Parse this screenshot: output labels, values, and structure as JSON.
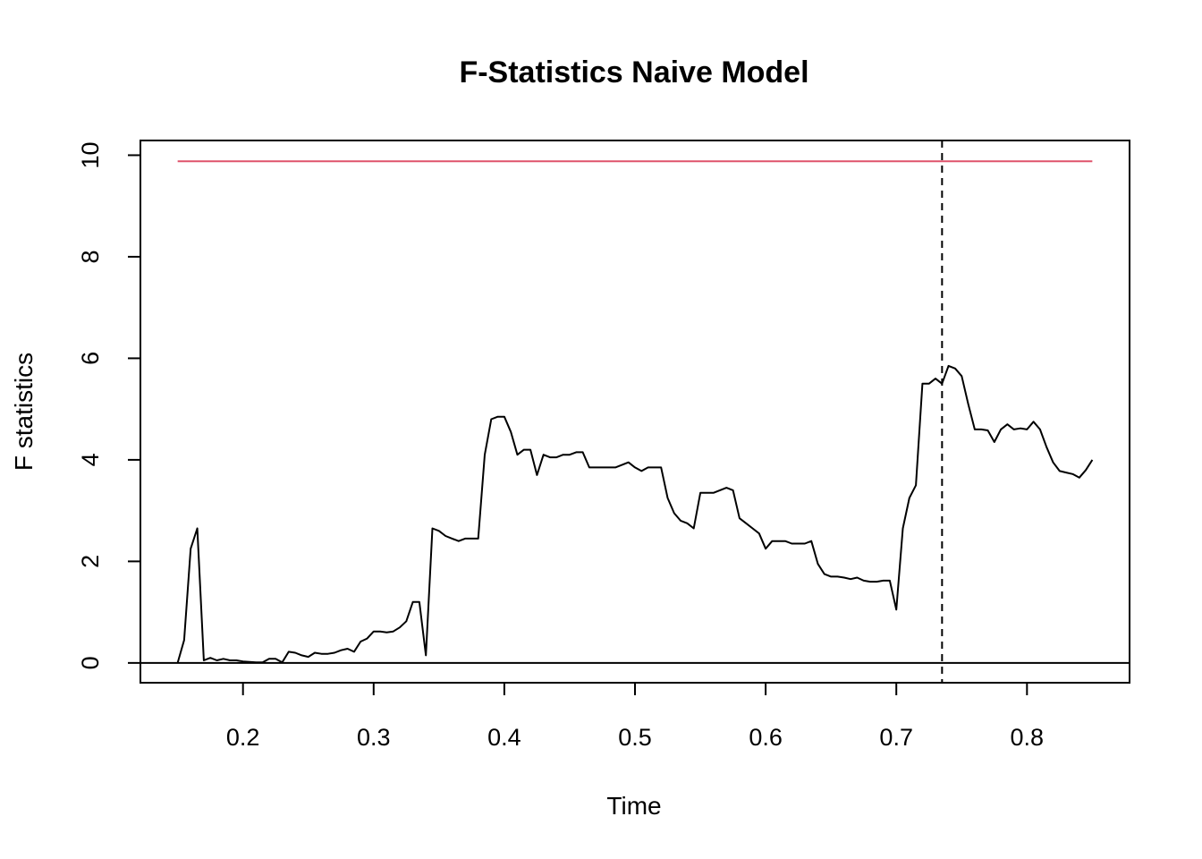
{
  "chart_data": {
    "type": "line",
    "title": "F-Statistics Naive Model",
    "xlabel": "Time",
    "ylabel": "F statistics",
    "xlim": [
      0.1215,
      0.8785
    ],
    "ylim": [
      -0.39,
      10.29
    ],
    "x_ticks": [
      0.2,
      0.3,
      0.4,
      0.5,
      0.6,
      0.7,
      0.8
    ],
    "y_ticks": [
      0,
      2,
      4,
      6,
      8,
      10
    ],
    "x_tick_labels": [
      "0.2",
      "0.3",
      "0.4",
      "0.5",
      "0.6",
      "0.7",
      "0.8"
    ],
    "y_tick_labels": [
      "0",
      "2",
      "4",
      "6",
      "8",
      "10"
    ],
    "grid": false,
    "series": [
      {
        "color": "#000000",
        "x": [
          0.15,
          0.155,
          0.16,
          0.165,
          0.17,
          0.175,
          0.18,
          0.185,
          0.19,
          0.195,
          0.2,
          0.205,
          0.21,
          0.215,
          0.22,
          0.225,
          0.23,
          0.235,
          0.24,
          0.245,
          0.25,
          0.255,
          0.26,
          0.265,
          0.27,
          0.275,
          0.28,
          0.285,
          0.29,
          0.295,
          0.3,
          0.305,
          0.31,
          0.315,
          0.32,
          0.325,
          0.33,
          0.335,
          0.34,
          0.345,
          0.35,
          0.355,
          0.36,
          0.365,
          0.37,
          0.375,
          0.38,
          0.385,
          0.39,
          0.395,
          0.4,
          0.405,
          0.41,
          0.415,
          0.42,
          0.425,
          0.43,
          0.435,
          0.44,
          0.445,
          0.45,
          0.455,
          0.46,
          0.465,
          0.47,
          0.475,
          0.48,
          0.485,
          0.49,
          0.495,
          0.5,
          0.505,
          0.51,
          0.515,
          0.52,
          0.525,
          0.53,
          0.535,
          0.54,
          0.545,
          0.55,
          0.555,
          0.56,
          0.565,
          0.57,
          0.575,
          0.58,
          0.585,
          0.59,
          0.595,
          0.6,
          0.605,
          0.61,
          0.615,
          0.62,
          0.625,
          0.63,
          0.635,
          0.64,
          0.645,
          0.65,
          0.655,
          0.66,
          0.665,
          0.67,
          0.675,
          0.68,
          0.685,
          0.69,
          0.695,
          0.7,
          0.705,
          0.71,
          0.715,
          0.72,
          0.725,
          0.73,
          0.735,
          0.74,
          0.745,
          0.75,
          0.755,
          0.76,
          0.765,
          0.77,
          0.775,
          0.78,
          0.785,
          0.79,
          0.795,
          0.8,
          0.805,
          0.81,
          0.815,
          0.82,
          0.825,
          0.83,
          0.835,
          0.84,
          0.845,
          0.85
        ],
        "y": [
          0,
          0.45,
          2.25,
          2.65,
          0.05,
          0.1,
          0.05,
          0.08,
          0.05,
          0.05,
          0.03,
          0.02,
          0.01,
          0.01,
          0.08,
          0.08,
          0.01,
          0.22,
          0.2,
          0.15,
          0.12,
          0.2,
          0.18,
          0.18,
          0.2,
          0.25,
          0.28,
          0.22,
          0.42,
          0.48,
          0.62,
          0.62,
          0.6,
          0.62,
          0.7,
          0.82,
          1.2,
          1.2,
          0.15,
          2.65,
          2.6,
          2.5,
          2.45,
          2.4,
          2.45,
          2.45,
          2.45,
          4.1,
          4.8,
          4.85,
          4.85,
          4.55,
          4.1,
          4.2,
          4.2,
          3.7,
          4.1,
          4.05,
          4.05,
          4.1,
          4.1,
          4.15,
          4.15,
          3.85,
          3.85,
          3.85,
          3.85,
          3.85,
          3.9,
          3.95,
          3.85,
          3.78,
          3.85,
          3.85,
          3.85,
          3.25,
          2.95,
          2.8,
          2.75,
          2.65,
          3.35,
          3.35,
          3.35,
          3.4,
          3.45,
          3.4,
          2.85,
          2.75,
          2.65,
          2.55,
          2.25,
          2.4,
          2.4,
          2.4,
          2.35,
          2.35,
          2.35,
          2.4,
          1.95,
          1.75,
          1.7,
          1.7,
          1.68,
          1.65,
          1.68,
          1.62,
          1.6,
          1.6,
          1.62,
          1.62,
          1.05,
          2.65,
          3.25,
          3.5,
          5.5,
          5.5,
          5.6,
          5.5,
          5.85,
          5.8,
          5.65,
          5.1,
          4.6,
          4.6,
          4.58,
          4.35,
          4.6,
          4.7,
          4.6,
          4.62,
          4.6,
          4.75,
          4.6,
          4.25,
          3.95,
          3.78,
          3.75,
          3.72,
          3.65,
          3.8,
          4.0
        ]
      }
    ],
    "hlines": [
      {
        "y": 0,
        "color": "#000000",
        "style": "solid"
      },
      {
        "y": 9.88,
        "x_from": 0.15,
        "x_to": 0.85,
        "color": "#DF536B",
        "style": "solid"
      }
    ],
    "vlines": [
      {
        "x": 0.735,
        "color": "#000000",
        "style": "dashed"
      }
    ]
  }
}
